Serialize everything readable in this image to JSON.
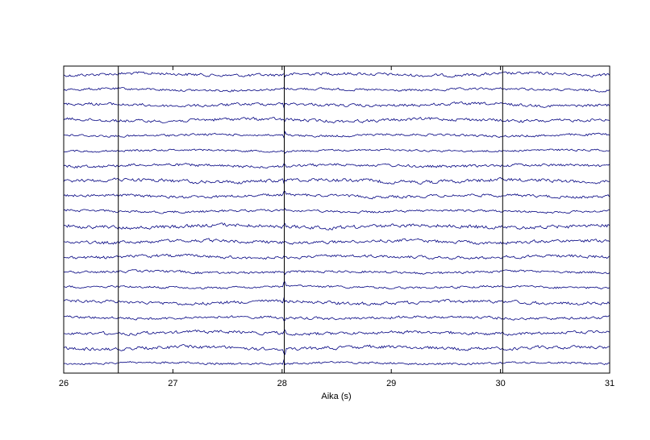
{
  "chart_data": {
    "type": "line",
    "title": "",
    "xlabel": "Aika (s)",
    "ylabel": "",
    "xlim": [
      26,
      31
    ],
    "x_ticks": [
      26,
      27,
      28,
      29,
      30,
      31
    ],
    "x_tick_labels": [
      "26",
      "27",
      "28",
      "29",
      "30",
      "31"
    ],
    "y_ticks": [],
    "grid": false,
    "legend": "none",
    "channel_count": 20,
    "event_markers_s": [
      26.5,
      28.02,
      30.02
    ],
    "trace_color": "#000080",
    "marker_color": "#000000",
    "background": "#ffffff"
  }
}
